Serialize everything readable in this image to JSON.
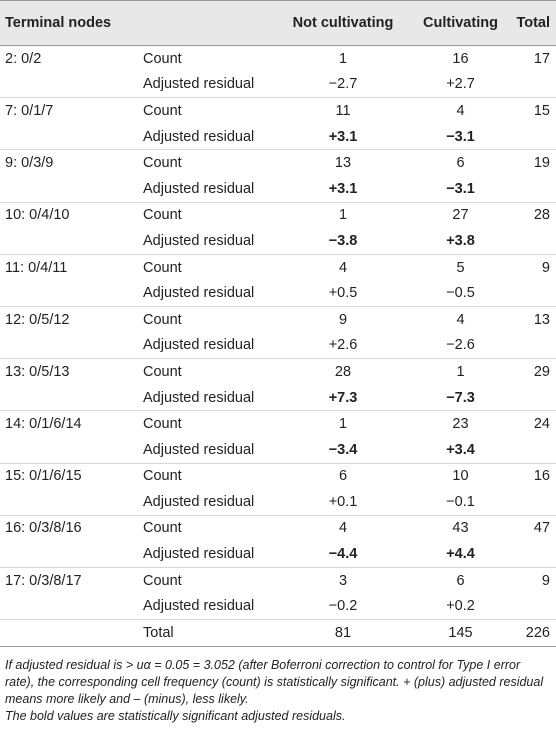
{
  "table": {
    "columns": [
      "Terminal nodes",
      null,
      "Not cultivating",
      "Cultivating",
      "Total"
    ],
    "rows": [
      [
        "2: 0/2",
        "Count",
        1,
        16,
        17
      ],
      [
        null,
        "Adjusted residual",
        "−2.7",
        "+2.7",
        null
      ],
      [
        "7: 0/1/7",
        "Count",
        11,
        4,
        15
      ],
      [
        null,
        "Adjusted residual",
        {
          "text": "+3.1",
          "bold": true
        },
        {
          "text": "−3.1",
          "bold": true
        },
        null
      ],
      [
        "9: 0/3/9",
        "Count",
        13,
        6,
        19
      ],
      [
        null,
        "Adjusted residual",
        {
          "text": "+3.1",
          "bold": true
        },
        {
          "text": "−3.1",
          "bold": true
        },
        null
      ],
      [
        "10: 0/4/10",
        "Count",
        1,
        27,
        28
      ],
      [
        null,
        "Adjusted residual",
        {
          "text": "−3.8",
          "bold": true
        },
        {
          "text": "+3.8",
          "bold": true
        },
        null
      ],
      [
        "11: 0/4/11",
        "Count",
        4,
        5,
        9
      ],
      [
        null,
        "Adjusted residual",
        "+0.5",
        "−0.5",
        null
      ],
      [
        "12: 0/5/12",
        "Count",
        9,
        4,
        13
      ],
      [
        null,
        "Adjusted residual",
        "+2.6",
        "−2.6",
        null
      ],
      [
        "13: 0/5/13",
        "Count",
        28,
        1,
        29
      ],
      [
        null,
        "Adjusted residual",
        {
          "text": "+7.3",
          "bold": true
        },
        {
          "text": "−7.3",
          "bold": true
        },
        null
      ],
      [
        "14: 0/1/6/14",
        "Count",
        1,
        23,
        24
      ],
      [
        null,
        "Adjusted residual",
        {
          "text": "−3.4",
          "bold": true
        },
        {
          "text": "+3.4",
          "bold": true
        },
        null
      ],
      [
        "15: 0/1/6/15",
        "Count",
        6,
        10,
        16
      ],
      [
        null,
        "Adjusted residual",
        "+0.1",
        "−0.1",
        null
      ],
      [
        "16: 0/3/8/16",
        "Count",
        4,
        43,
        47
      ],
      [
        null,
        "Adjusted residual",
        {
          "text": "−4.4",
          "bold": true
        },
        {
          "text": "+4.4",
          "bold": true
        },
        null
      ],
      [
        "17: 0/3/8/17",
        "Count",
        3,
        6,
        9
      ],
      [
        null,
        "Adjusted residual",
        "−0.2",
        "+0.2",
        null
      ],
      [
        null,
        "Total",
        81,
        145,
        226
      ]
    ]
  },
  "footnotes": [
    "If adjusted residual is > uα = 0.05 = 3.052 (after Boferroni correction to control for Type I error rate), the corresponding cell frequency (count) is statistically significant. + (plus) adjusted residual means more likely and – (minus), less likely.",
    "The bold values are statistically significant adjusted residuals."
  ]
}
